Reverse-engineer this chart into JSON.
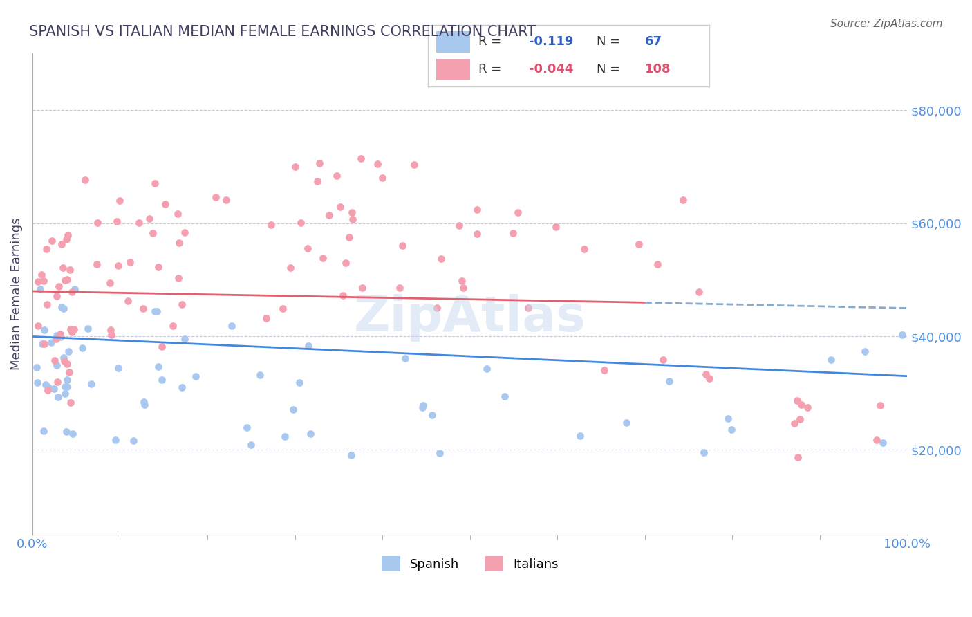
{
  "title": "SPANISH VS ITALIAN MEDIAN FEMALE EARNINGS CORRELATION CHART",
  "source": "Source: ZipAtlas.com",
  "xlabel": "",
  "ylabel": "Median Female Earnings",
  "xlim": [
    0.0,
    100.0
  ],
  "ylim": [
    5000,
    90000
  ],
  "yticks": [
    20000,
    40000,
    60000,
    80000
  ],
  "ytick_labels": [
    "$20,000",
    "$40,000",
    "$60,000",
    "$80,000"
  ],
  "xtick_labels": [
    "0.0%",
    "100.0%"
  ],
  "spanish_color": "#a8c8f0",
  "italian_color": "#f4a0b0",
  "spanish_R": -0.119,
  "spanish_N": 67,
  "italian_R": -0.044,
  "italian_N": 108,
  "legend_R_color": "#3060c0",
  "legend_N_color": "#3060c0",
  "watermark": "ZipAtlas",
  "background_color": "#ffffff",
  "grid_color": "#c8c8d8",
  "title_color": "#404060",
  "axis_label_color": "#404060",
  "tick_label_color": "#5090e0",
  "spanish_scatter": {
    "x": [
      1.2,
      1.5,
      2.0,
      2.3,
      2.5,
      2.8,
      3.0,
      3.2,
      3.5,
      3.8,
      4.0,
      4.2,
      4.5,
      5.0,
      5.5,
      6.0,
      6.5,
      7.0,
      7.5,
      8.0,
      9.0,
      10.0,
      11.0,
      12.0,
      14.0,
      15.0,
      17.0,
      18.0,
      20.0,
      22.0,
      23.0,
      25.0,
      28.0,
      30.0,
      33.0,
      38.0,
      40.0,
      42.0,
      45.0,
      48.0,
      50.0,
      52.0,
      55.0,
      58.0,
      60.0,
      63.0,
      65.0,
      68.0,
      70.0,
      73.0,
      75.0,
      77.0,
      80.0,
      83.0,
      85.0,
      88.0,
      90.0,
      92.0,
      94.0,
      95.0,
      96.0,
      97.0,
      98.0,
      99.0,
      99.5,
      99.8,
      100.0
    ],
    "y": [
      38000,
      36000,
      40000,
      34000,
      38000,
      30000,
      35000,
      28000,
      32000,
      26000,
      27000,
      30000,
      50000,
      34000,
      32000,
      28000,
      24000,
      30000,
      22000,
      36000,
      26000,
      28000,
      30000,
      32000,
      34000,
      33000,
      28000,
      35000,
      35000,
      28000,
      30000,
      25000,
      22000,
      30000,
      38000,
      26000,
      35000,
      40000,
      28000,
      35000,
      38000,
      40000,
      35000,
      30000,
      42000,
      40000,
      42000,
      38000,
      42000,
      40000,
      38000,
      45000,
      30000,
      38000,
      28000,
      40000,
      42000,
      35000,
      42000,
      45000,
      22000,
      25000,
      30000,
      22000,
      24000,
      22000,
      28000
    ]
  },
  "italian_scatter": {
    "x": [
      1.0,
      1.3,
      1.5,
      1.8,
      2.0,
      2.2,
      2.5,
      2.8,
      3.0,
      3.2,
      3.5,
      3.8,
      4.0,
      4.2,
      4.5,
      4.8,
      5.0,
      5.5,
      6.0,
      6.5,
      7.0,
      7.5,
      8.0,
      8.5,
      9.0,
      9.5,
      10.0,
      11.0,
      12.0,
      13.0,
      14.0,
      15.0,
      16.0,
      17.0,
      18.0,
      19.0,
      20.0,
      21.0,
      22.0,
      23.0,
      24.0,
      25.0,
      26.0,
      27.0,
      28.0,
      29.0,
      30.0,
      32.0,
      34.0,
      35.0,
      37.0,
      38.0,
      40.0,
      42.0,
      44.0,
      46.0,
      48.0,
      50.0,
      52.0,
      54.0,
      56.0,
      58.0,
      60.0,
      62.0,
      64.0,
      66.0,
      68.0,
      70.0,
      72.0,
      74.0,
      76.0,
      78.0,
      80.0,
      82.0,
      84.0,
      86.0,
      88.0,
      90.0,
      92.0,
      94.0,
      96.0,
      98.0,
      100.0,
      52.0,
      38.0,
      48.0,
      60.0,
      70.0,
      80.0,
      90.0,
      95.0,
      55.0,
      65.0,
      72.0,
      75.0,
      85.0,
      92.0,
      96.0,
      98.0,
      100.0,
      28.0,
      35.0,
      45.0,
      55.0,
      60.0,
      68.0,
      75.0,
      82.0
    ],
    "y": [
      36000,
      34000,
      40000,
      38000,
      45000,
      42000,
      48000,
      46000,
      50000,
      42000,
      48000,
      44000,
      46000,
      50000,
      44000,
      42000,
      48000,
      46000,
      44000,
      48000,
      50000,
      46000,
      52000,
      48000,
      50000,
      44000,
      52000,
      48000,
      50000,
      54000,
      52000,
      56000,
      50000,
      54000,
      58000,
      56000,
      60000,
      58000,
      54000,
      56000,
      60000,
      58000,
      56000,
      54000,
      58000,
      60000,
      56000,
      58000,
      54000,
      56000,
      60000,
      58000,
      62000,
      60000,
      58000,
      56000,
      54000,
      60000,
      58000,
      56000,
      54000,
      58000,
      56000,
      54000,
      58000,
      56000,
      54000,
      58000,
      56000,
      54000,
      58000,
      56000,
      54000,
      50000,
      48000,
      46000,
      44000,
      48000,
      46000,
      44000,
      42000,
      40000,
      38000,
      65000,
      70000,
      62000,
      68000,
      66000,
      64000,
      20000,
      18000,
      72000,
      60000,
      58000,
      56000,
      22000,
      52000,
      48000,
      46000,
      24000,
      44000,
      42000,
      40000,
      38000,
      36000,
      34000,
      32000,
      30000
    ]
  }
}
